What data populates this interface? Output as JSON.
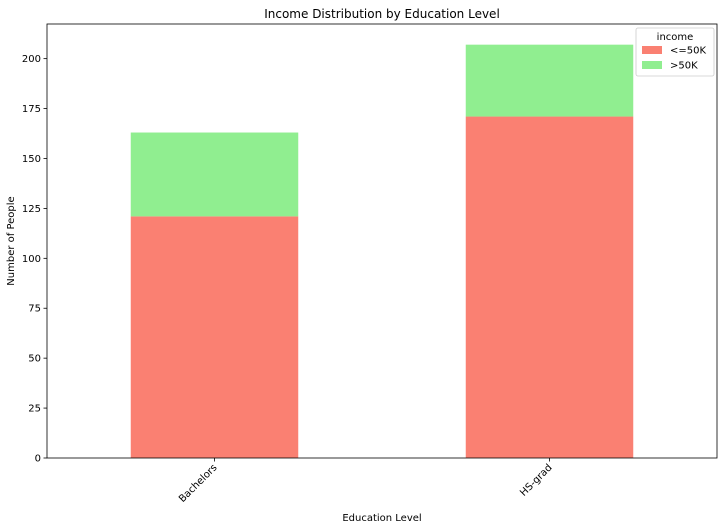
{
  "chart_data": {
    "type": "bar",
    "stacked": true,
    "title": "Income Distribution by Education Level",
    "xlabel": "Education Level",
    "ylabel": "Number of People",
    "categories": [
      "Bachelors",
      "HS-grad"
    ],
    "series": [
      {
        "name": "<=50K",
        "values": [
          121,
          171
        ],
        "color": "#fa8072"
      },
      {
        "name": ">50K",
        "values": [
          42,
          36
        ],
        "color": "#90ee90"
      }
    ],
    "ylim": [
      0,
      217.35
    ],
    "yticks": [
      0,
      25,
      50,
      75,
      100,
      125,
      150,
      175,
      200
    ],
    "grid": false,
    "legend": {
      "title": "income",
      "placement": "top-right"
    }
  }
}
